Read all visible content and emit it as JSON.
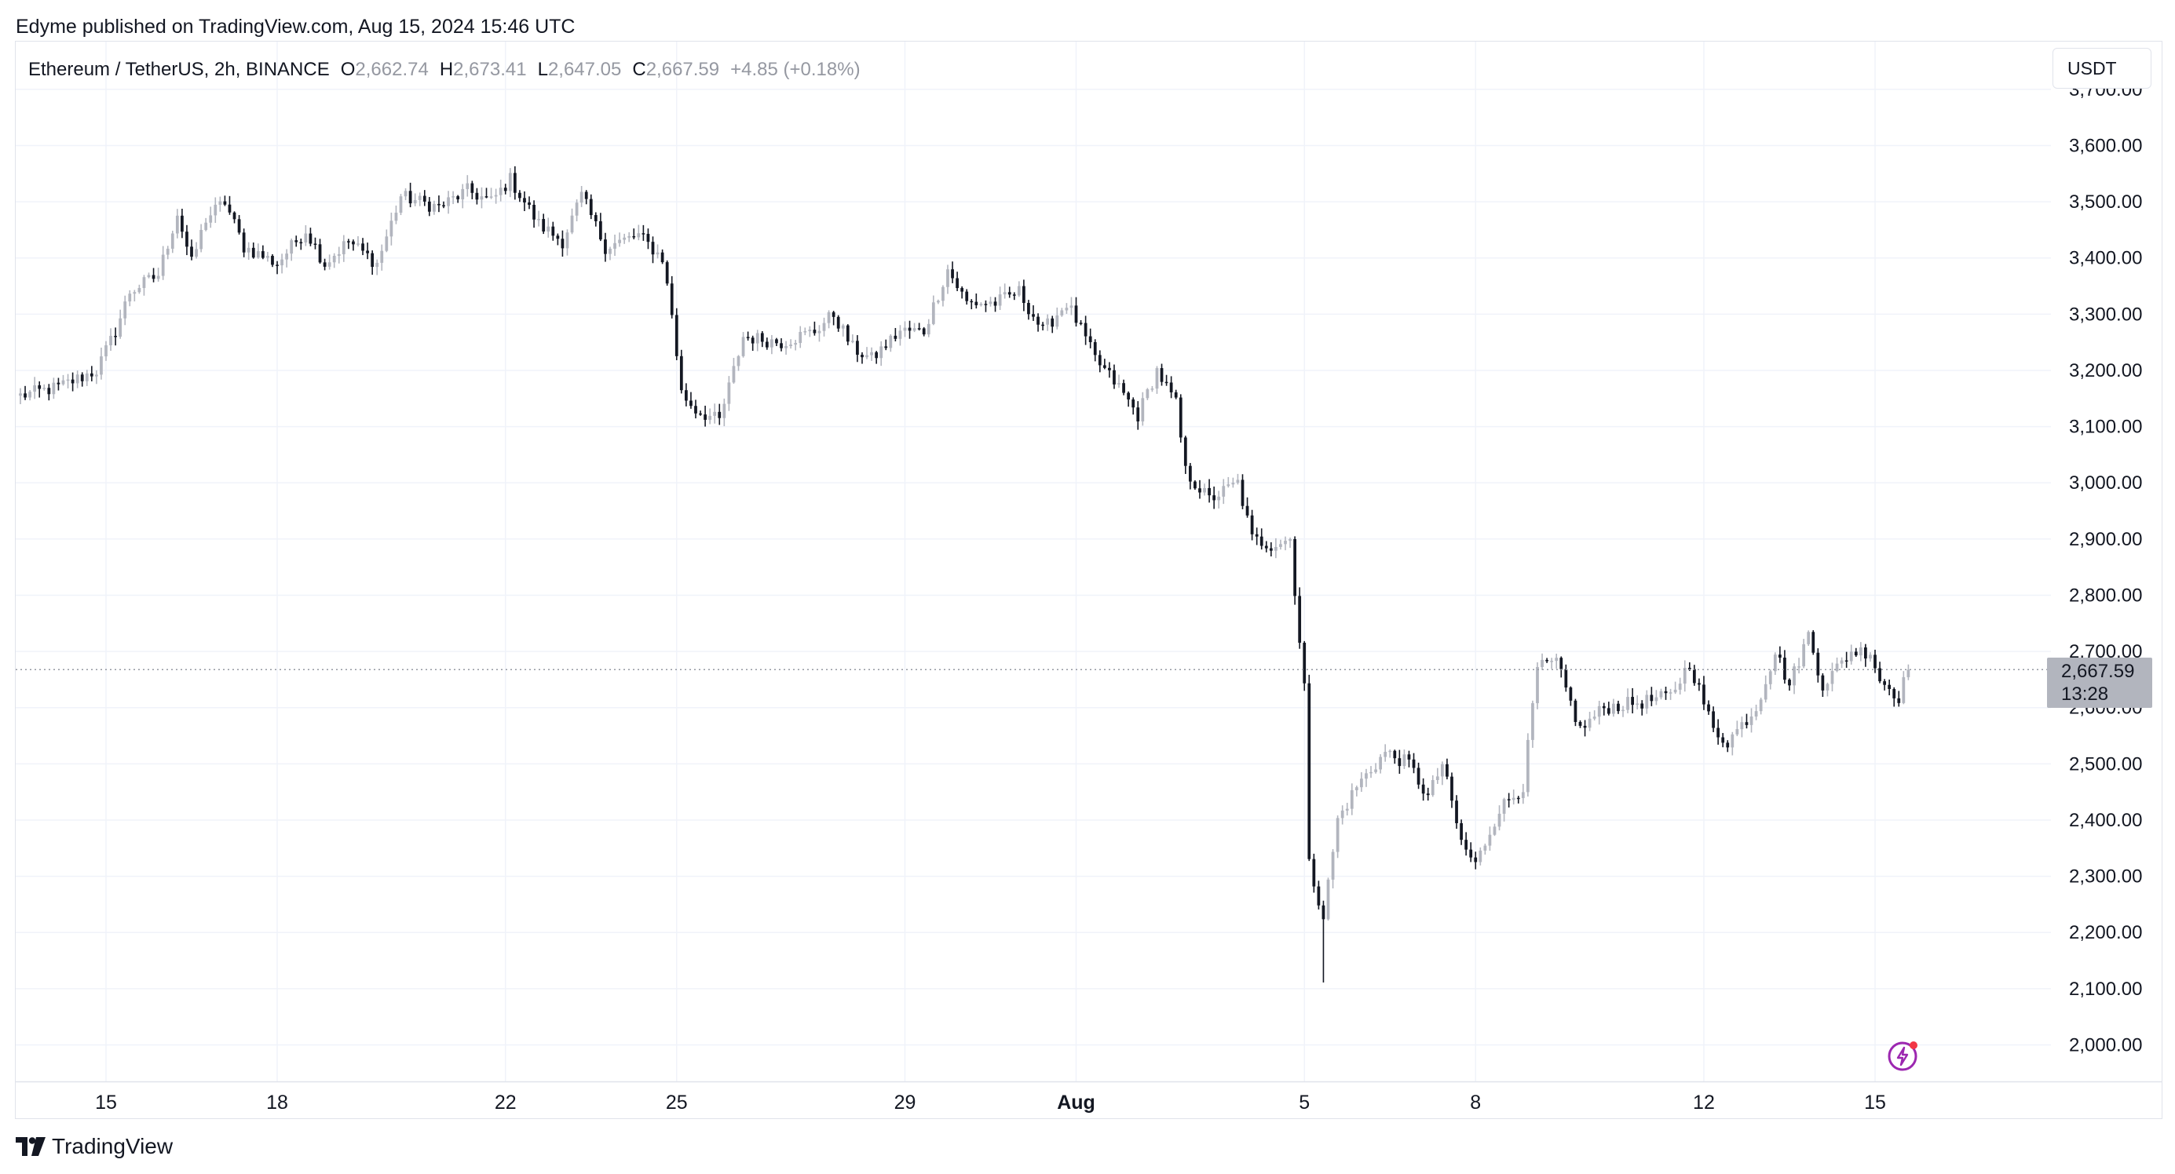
{
  "header": {
    "published": "Edyme published on TradingView.com, Aug 15, 2024 15:46 UTC"
  },
  "legend": {
    "symbol": "Ethereum / TetherUS, 2h, BINANCE",
    "open_label": "O",
    "open": "2,662.74",
    "high_label": "H",
    "high": "2,673.41",
    "low_label": "L",
    "low": "2,647.05",
    "close_label": "C",
    "close": "2,667.59",
    "change": "+4.85 (+0.18%)"
  },
  "currency_button": "USDT",
  "last_price": {
    "price": "2,667.59",
    "countdown": "13:28"
  },
  "footer": {
    "brand": "TradingView"
  },
  "colors": {
    "up": "#b2b5be",
    "down": "#131722",
    "grid": "#f0f3fa",
    "axis_text": "#131722"
  },
  "icons": [
    "bolt-icon",
    "tradingview-logo"
  ],
  "chart_data": {
    "type": "candlestick",
    "y_axis_position": "right",
    "ylim": [
      1935,
      3785
    ],
    "y_ticks": [
      "3,700.00",
      "3,600.00",
      "3,500.00",
      "3,400.00",
      "3,300.00",
      "3,200.00",
      "3,100.00",
      "3,000.00",
      "2,900.00",
      "2,800.00",
      "2,700.00",
      "2,600.00",
      "2,500.00",
      "2,400.00",
      "2,300.00",
      "2,200.00",
      "2,100.00",
      "2,000.00"
    ],
    "x_labels": [
      "15",
      "18",
      "22",
      "25",
      "29",
      "Aug",
      "5",
      "8",
      "12",
      "15"
    ],
    "x_label_dates": [
      "2024-07-15",
      "2024-07-18",
      "2024-07-22",
      "2024-07-25",
      "2024-07-29",
      "2024-08-01",
      "2024-08-05",
      "2024-08-08",
      "2024-08-12",
      "2024-08-15"
    ],
    "last_close": 2667.59,
    "grid": true,
    "series": [
      {
        "interval": "2h",
        "path": [
          [
            "2024-07-13T12:00",
            3155
          ],
          [
            "2024-07-14T04:00",
            3170
          ],
          [
            "2024-07-14T20:00",
            3200
          ],
          [
            "2024-07-15T04:00",
            3270
          ],
          [
            "2024-07-15T10:00",
            3340
          ],
          [
            "2024-07-15T22:00",
            3370
          ],
          [
            "2024-07-16T06:00",
            3480
          ],
          [
            "2024-07-16T12:00",
            3390
          ],
          [
            "2024-07-16T18:00",
            3470
          ],
          [
            "2024-07-17T02:00",
            3500
          ],
          [
            "2024-07-17T10:00",
            3420
          ],
          [
            "2024-07-18T00:00",
            3390
          ],
          [
            "2024-07-18T12:00",
            3450
          ],
          [
            "2024-07-18T20:00",
            3390
          ],
          [
            "2024-07-19T06:00",
            3430
          ],
          [
            "2024-07-19T18:00",
            3390
          ],
          [
            "2024-07-20T04:00",
            3510
          ],
          [
            "2024-07-20T20:00",
            3490
          ],
          [
            "2024-07-21T08:00",
            3520
          ],
          [
            "2024-07-21T18:00",
            3500
          ],
          [
            "2024-07-22T02:00",
            3540
          ],
          [
            "2024-07-22T14:00",
            3460
          ],
          [
            "2024-07-23T00:00",
            3430
          ],
          [
            "2024-07-23T08:00",
            3510
          ],
          [
            "2024-07-23T18:00",
            3420
          ],
          [
            "2024-07-24T08:00",
            3440
          ],
          [
            "2024-07-24T18:00",
            3400
          ],
          [
            "2024-07-24T22:00",
            3300
          ],
          [
            "2024-07-25T02:00",
            3160
          ],
          [
            "2024-07-25T08:00",
            3130
          ],
          [
            "2024-07-25T18:00",
            3110
          ],
          [
            "2024-07-26T04:00",
            3260
          ],
          [
            "2024-07-26T20:00",
            3250
          ],
          [
            "2024-07-27T10:00",
            3270
          ],
          [
            "2024-07-27T18:00",
            3300
          ],
          [
            "2024-07-28T02:00",
            3240
          ],
          [
            "2024-07-28T10:00",
            3220
          ],
          [
            "2024-07-28T22:00",
            3270
          ],
          [
            "2024-07-29T08:00",
            3270
          ],
          [
            "2024-07-29T18:00",
            3380
          ],
          [
            "2024-07-30T02:00",
            3320
          ],
          [
            "2024-07-30T14:00",
            3320
          ],
          [
            "2024-07-31T00:00",
            3340
          ],
          [
            "2024-07-31T10:00",
            3270
          ],
          [
            "2024-07-31T20:00",
            3320
          ],
          [
            "2024-08-01T00:00",
            3290
          ],
          [
            "2024-08-01T08:00",
            3220
          ],
          [
            "2024-08-01T18:00",
            3170
          ],
          [
            "2024-08-02T02:00",
            3120
          ],
          [
            "2024-08-02T10:00",
            3200
          ],
          [
            "2024-08-02T18:00",
            3140
          ],
          [
            "2024-08-02T22:00",
            3020
          ],
          [
            "2024-08-03T08:00",
            2970
          ],
          [
            "2024-08-03T20:00",
            3000
          ],
          [
            "2024-08-04T02:00",
            2900
          ],
          [
            "2024-08-04T10:00",
            2890
          ],
          [
            "2024-08-04T18:00",
            2900
          ],
          [
            "2024-08-04T22:00",
            2720
          ],
          [
            "2024-08-05T00:00",
            2640
          ],
          [
            "2024-08-05T02:00",
            2320
          ],
          [
            "2024-08-05T08:00",
            2230
          ],
          [
            "2024-08-05T14:00",
            2400
          ],
          [
            "2024-08-05T22:00",
            2460
          ],
          [
            "2024-08-06T10:00",
            2520
          ],
          [
            "2024-08-06T20:00",
            2500
          ],
          [
            "2024-08-07T04:00",
            2440
          ],
          [
            "2024-08-07T10:00",
            2500
          ],
          [
            "2024-08-07T18:00",
            2360
          ],
          [
            "2024-08-08T00:00",
            2320
          ],
          [
            "2024-08-08T10:00",
            2420
          ],
          [
            "2024-08-08T20:00",
            2460
          ],
          [
            "2024-08-09T02:00",
            2670
          ],
          [
            "2024-08-09T10:00",
            2680
          ],
          [
            "2024-08-09T20:00",
            2560
          ],
          [
            "2024-08-10T06:00",
            2600
          ],
          [
            "2024-08-10T22:00",
            2610
          ],
          [
            "2024-08-11T10:00",
            2620
          ],
          [
            "2024-08-11T18:00",
            2680
          ],
          [
            "2024-08-12T04:00",
            2560
          ],
          [
            "2024-08-12T10:00",
            2540
          ],
          [
            "2024-08-12T22:00",
            2600
          ],
          [
            "2024-08-13T06:00",
            2700
          ],
          [
            "2024-08-13T12:00",
            2640
          ],
          [
            "2024-08-13T20:00",
            2730
          ],
          [
            "2024-08-14T02:00",
            2640
          ],
          [
            "2024-08-14T14:00",
            2700
          ],
          [
            "2024-08-14T22:00",
            2700
          ],
          [
            "2024-08-15T02:00",
            2650
          ],
          [
            "2024-08-15T10:00",
            2620
          ],
          [
            "2024-08-15T14:00",
            2667.59
          ]
        ],
        "extremes": {
          "high": 3560,
          "low": 2111
        }
      }
    ]
  }
}
